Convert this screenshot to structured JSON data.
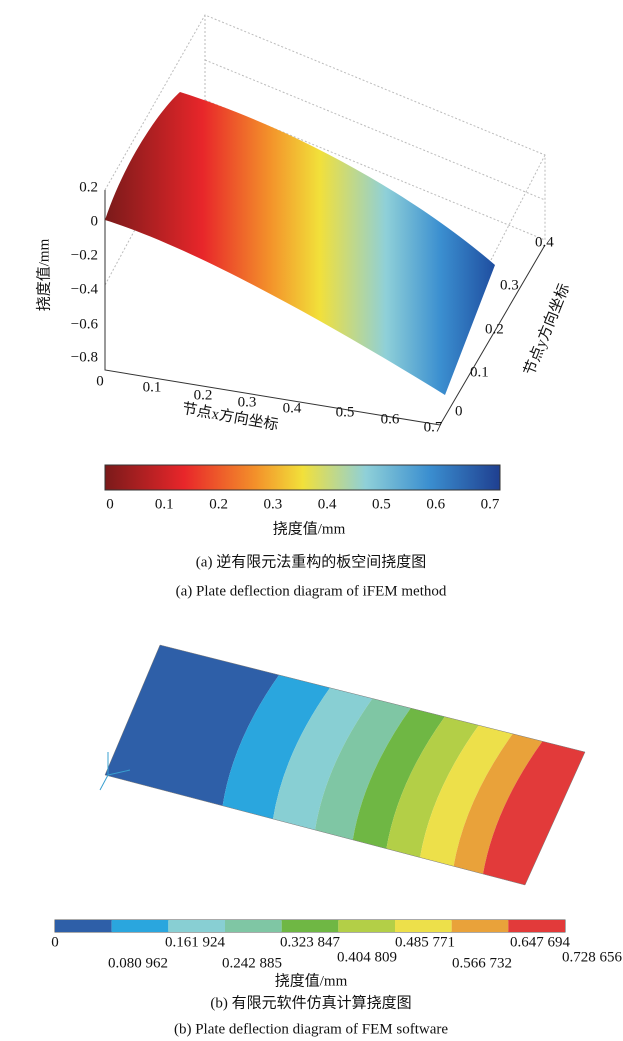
{
  "figure_a": {
    "z_axis_label": "挠度值/mm",
    "z_ticks": [
      "0.2",
      "0",
      "−0.2",
      "−0.4",
      "−0.6",
      "−0.8"
    ],
    "x_axis_label": "节点x方向坐标",
    "x_ticks": [
      "0",
      "0.1",
      "0.2",
      "0.3",
      "0.4",
      "0.5",
      "0.6",
      "0.7"
    ],
    "y_axis_label": "节点y方向坐标",
    "y_ticks": [
      "0",
      "0.1",
      "0.2",
      "0.3",
      "0.4"
    ],
    "colorbar_ticks": [
      "0",
      "0.1",
      "0.2",
      "0.3",
      "0.4",
      "0.5",
      "0.6",
      "0.7"
    ],
    "colorbar_label": "挠度值/mm",
    "caption_zh": "(a)  逆有限元法重构的板空间挠度图",
    "caption_en": "(a) Plate deflection diagram of iFEM method"
  },
  "figure_b": {
    "colorbar_ticks": [
      "0",
      "0.080 962",
      "0.161 924",
      "0.242 885",
      "0.323 847",
      "0.404 809",
      "0.485 771",
      "0.566 732",
      "0.647 694",
      "0.728 656"
    ],
    "colorbar_label": "挠度值/mm",
    "caption_zh": "(b)  有限元软件仿真计算挠度图",
    "caption_en": "(b)  Plate deflection diagram of FEM software"
  }
}
